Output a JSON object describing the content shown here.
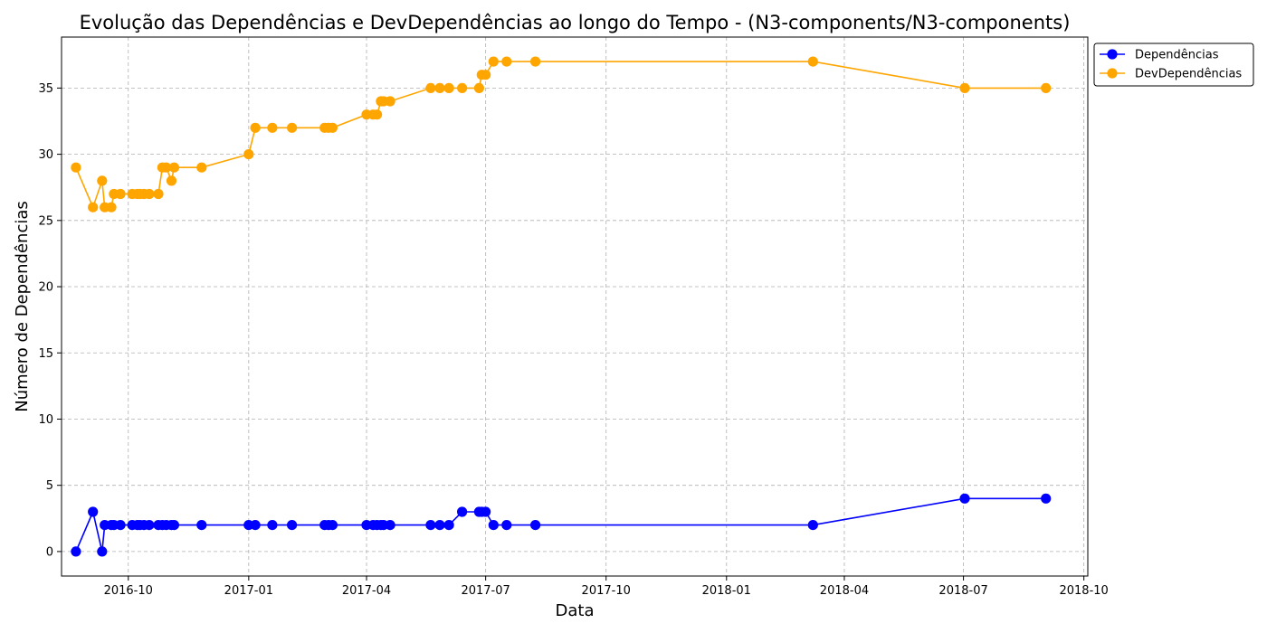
{
  "chart_data": {
    "type": "line",
    "title": "Evolução das Dependências e DevDependências ao longo do Tempo - (N3-components/N3-components)",
    "xlabel": "Data",
    "ylabel": "Número de Dependências",
    "x_ticks": [
      "2016-10",
      "2017-01",
      "2017-04",
      "2017-07",
      "2017-10",
      "2018-01",
      "2018-04",
      "2018-07",
      "2018-10"
    ],
    "y_ticks": [
      0,
      5,
      10,
      15,
      20,
      25,
      30,
      35
    ],
    "xlim": [
      "2016-08-11",
      "2018-10-04"
    ],
    "ylim": [
      -1.85,
      38.85
    ],
    "grid": true,
    "legend_position": "upper-right-outside",
    "x": [
      "2016-08-22",
      "2016-09-04",
      "2016-09-11",
      "2016-09-13",
      "2016-09-18",
      "2016-09-20",
      "2016-09-25",
      "2016-10-04",
      "2016-10-08",
      "2016-10-10",
      "2016-10-13",
      "2016-10-17",
      "2016-10-24",
      "2016-10-27",
      "2016-10-30",
      "2016-11-03",
      "2016-11-05",
      "2016-11-26",
      "2017-01-01",
      "2017-01-06",
      "2017-01-19",
      "2017-02-03",
      "2017-02-28",
      "2017-03-03",
      "2017-03-06",
      "2017-04-01",
      "2017-04-06",
      "2017-04-09",
      "2017-04-12",
      "2017-04-14",
      "2017-04-19",
      "2017-05-20",
      "2017-05-27",
      "2017-06-03",
      "2017-06-13",
      "2017-06-26",
      "2017-06-28",
      "2017-07-01",
      "2017-07-07",
      "2017-07-17",
      "2017-08-08",
      "2018-03-08",
      "2018-07-02",
      "2018-09-02"
    ],
    "series": [
      {
        "name": "Dependências",
        "color": "#0000ff",
        "values": [
          0,
          3,
          0,
          2,
          2,
          2,
          2,
          2,
          2,
          2,
          2,
          2,
          2,
          2,
          2,
          2,
          2,
          2,
          2,
          2,
          2,
          2,
          2,
          2,
          2,
          2,
          2,
          2,
          2,
          2,
          2,
          2,
          2,
          2,
          3,
          3,
          3,
          3,
          2,
          2,
          2,
          2,
          4,
          4
        ]
      },
      {
        "name": "DevDependências",
        "color": "#ffa500",
        "values": [
          29,
          26,
          28,
          26,
          26,
          27,
          27,
          27,
          27,
          27,
          27,
          27,
          27,
          29,
          29,
          28,
          29,
          29,
          30,
          32,
          32,
          32,
          32,
          32,
          32,
          33,
          33,
          33,
          34,
          34,
          34,
          35,
          35,
          35,
          35,
          35,
          36,
          36,
          37,
          37,
          37,
          37,
          35,
          35
        ]
      }
    ]
  }
}
